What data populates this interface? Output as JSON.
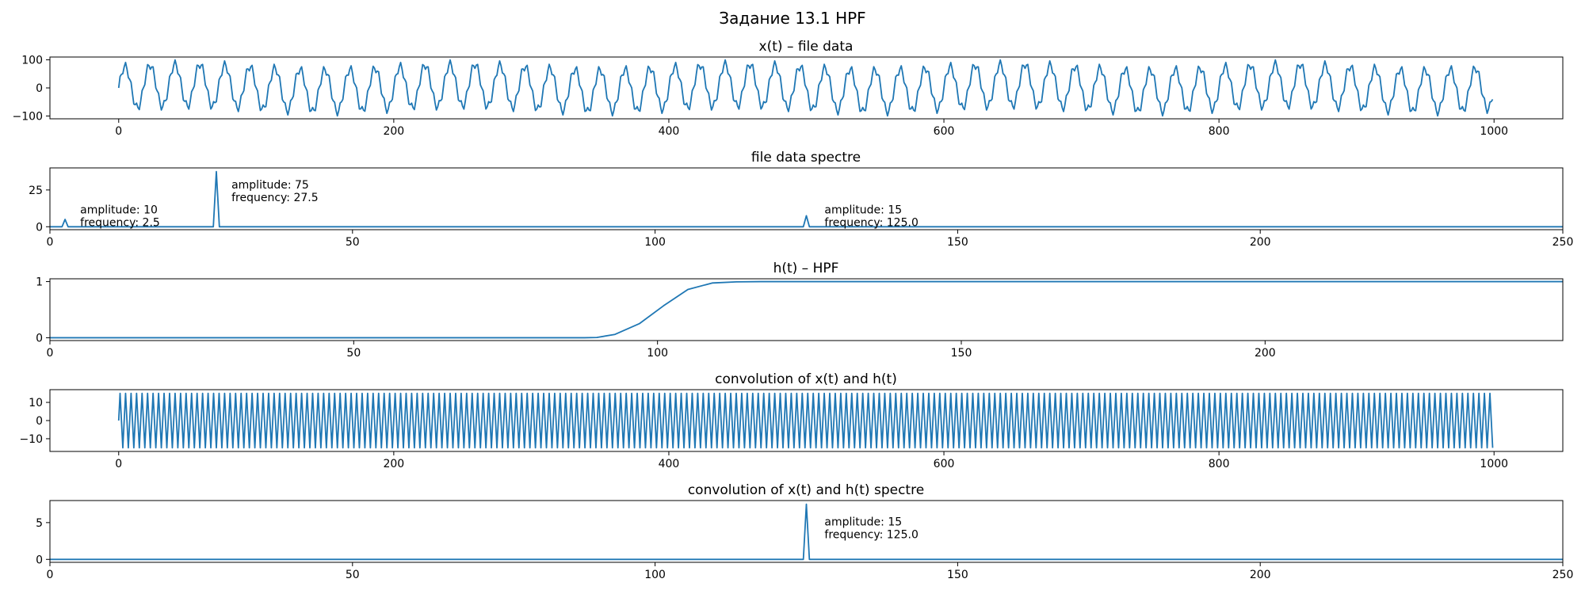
{
  "figure": {
    "title": "Задание 13.1 HPF"
  },
  "colors": {
    "line": "#1f77b4",
    "axes": "#000000",
    "background": "#ffffff"
  },
  "chart_data": [
    {
      "type": "line",
      "title": "x(t) – file data",
      "xlabel": "",
      "ylabel": "",
      "xlim": [
        -50,
        1050
      ],
      "ylim": [
        -110,
        110
      ],
      "xticks": [
        0,
        200,
        400,
        600,
        800,
        1000
      ],
      "yticks": [
        -100,
        0,
        100
      ],
      "grid": false,
      "signal": {
        "x_range": [
          0,
          999
        ],
        "components": [
          {
            "amplitude": 10,
            "frequency": 2.5
          },
          {
            "amplitude": 75,
            "frequency": 27.5
          },
          {
            "amplitude": 15,
            "frequency": 125.0
          }
        ],
        "sample_rate": 500
      }
    },
    {
      "type": "line",
      "title": "file data spectre",
      "xlabel": "",
      "ylabel": "",
      "xlim": [
        0,
        250
      ],
      "ylim": [
        -2,
        40
      ],
      "xticks": [
        0,
        50,
        100,
        150,
        200,
        250
      ],
      "yticks": [
        0,
        25
      ],
      "grid": false,
      "peaks": [
        {
          "x": 2.5,
          "y": 5
        },
        {
          "x": 27.5,
          "y": 37.5
        },
        {
          "x": 125.0,
          "y": 7.5
        }
      ],
      "annotations": [
        {
          "x": 5,
          "y": 9,
          "lines": [
            "amplitude: 10",
            "frequency: 2.5"
          ]
        },
        {
          "x": 30,
          "y": 26,
          "lines": [
            "amplitude: 75",
            "frequency: 27.5"
          ]
        },
        {
          "x": 128,
          "y": 9,
          "lines": [
            "amplitude: 15",
            "frequency: 125.0"
          ]
        }
      ]
    },
    {
      "type": "line",
      "title": "h(t) – HPF",
      "xlabel": "",
      "ylabel": "",
      "xlim": [
        0,
        249
      ],
      "ylim": [
        -0.05,
        1.05
      ],
      "xticks": [
        0,
        50,
        100,
        150,
        200
      ],
      "yticks": [
        0,
        1
      ],
      "grid": false,
      "x": [
        0,
        88,
        90,
        93,
        97,
        101,
        105,
        109,
        113,
        117,
        249
      ],
      "y": [
        0,
        0,
        0.005,
        0.06,
        0.25,
        0.57,
        0.86,
        0.975,
        0.995,
        1,
        1
      ]
    },
    {
      "type": "line",
      "title": "convolution of x(t) and h(t)",
      "xlabel": "",
      "ylabel": "",
      "xlim": [
        -50,
        1050
      ],
      "ylim": [
        -17,
        17
      ],
      "xticks": [
        0,
        200,
        400,
        600,
        800,
        1000
      ],
      "yticks": [
        -10,
        0,
        10
      ],
      "grid": false,
      "signal": {
        "x_range": [
          0,
          999
        ],
        "components": [
          {
            "amplitude": 15,
            "frequency": 125.0
          }
        ],
        "sample_rate": 500
      }
    },
    {
      "type": "line",
      "title": "convolution of x(t) and h(t) spectre",
      "xlabel": "",
      "ylabel": "",
      "xlim": [
        0,
        250
      ],
      "ylim": [
        -0.4,
        8
      ],
      "xticks": [
        0,
        50,
        100,
        150,
        200,
        250
      ],
      "yticks": [
        0,
        5
      ],
      "grid": false,
      "peaks": [
        {
          "x": 125.0,
          "y": 7.5
        }
      ],
      "annotations": [
        {
          "x": 128,
          "y": 4.6,
          "lines": [
            "amplitude: 15",
            "frequency: 125.0"
          ]
        }
      ]
    }
  ]
}
